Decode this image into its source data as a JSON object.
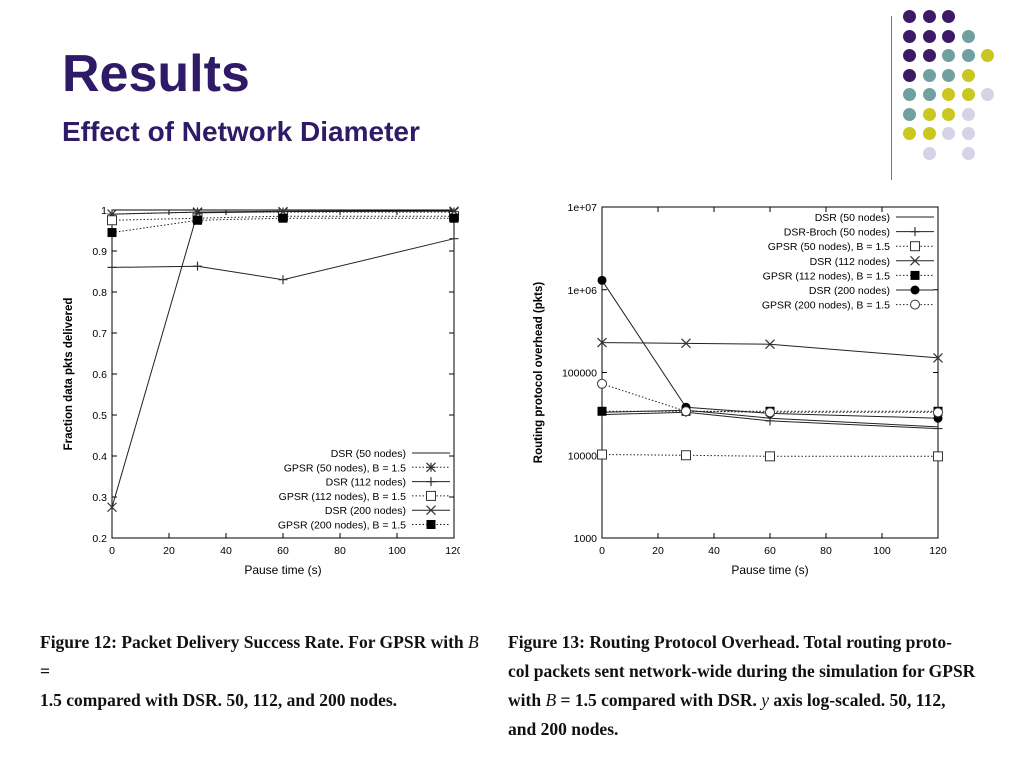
{
  "slide": {
    "title": "Results",
    "subtitle": "Effect of Network Diameter"
  },
  "decoration": {
    "colors": [
      "#3d1a66",
      "#70a0a0",
      "#c8c820",
      "#d4d4e6"
    ],
    "grid": [
      [
        0,
        0,
        0,
        -1,
        -1
      ],
      [
        0,
        0,
        0,
        1,
        -1
      ],
      [
        0,
        0,
        1,
        1,
        2
      ],
      [
        0,
        1,
        1,
        2,
        -1
      ],
      [
        1,
        1,
        2,
        2,
        3
      ],
      [
        1,
        2,
        2,
        3,
        -1
      ],
      [
        2,
        2,
        3,
        3,
        -1
      ],
      [
        -1,
        3,
        -1,
        3,
        -1
      ]
    ]
  },
  "chart_data": [
    {
      "type": "line",
      "xlabel": "Pause time (s)",
      "ylabel": "Fraction data pkts delivered",
      "xlim": [
        0,
        120
      ],
      "ylim": [
        0.2,
        1
      ],
      "xticks": [
        "0",
        "20",
        "40",
        "60",
        "80",
        "100",
        "120"
      ],
      "xtick_values": [
        0,
        20,
        40,
        60,
        80,
        100,
        120
      ],
      "yticks": [
        "0.2",
        "0.3",
        "0.4",
        "0.5",
        "0.6",
        "0.7",
        "0.8",
        "0.9",
        "1"
      ],
      "ytick_values": [
        0.2,
        0.3,
        0.4,
        0.5,
        0.6,
        0.7,
        0.8,
        0.9,
        1.0
      ],
      "grid": false,
      "legend_position": "bottom-right",
      "series": [
        {
          "name": "DSR (50 nodes)",
          "marker": "none",
          "dash": "solid",
          "x": [
            0,
            30,
            60,
            120
          ],
          "y": [
            0.99,
            0.995,
            0.997,
            0.998
          ]
        },
        {
          "name": "GPSR (50 nodes), B = 1.5",
          "marker": "asterisk",
          "dash": "dotted",
          "x": [
            0,
            30,
            60,
            120
          ],
          "y": [
            0.99,
            0.995,
            0.995,
            0.995
          ]
        },
        {
          "name": "DSR (112 nodes)",
          "marker": "plus",
          "dash": "solid",
          "x": [
            0,
            30,
            60,
            120
          ],
          "y": [
            0.86,
            0.863,
            0.83,
            0.93
          ]
        },
        {
          "name": "GPSR (112 nodes), B = 1.5",
          "marker": "square-open",
          "dash": "dotted",
          "x": [
            0,
            30,
            60,
            120
          ],
          "y": [
            0.975,
            0.98,
            0.985,
            0.985
          ]
        },
        {
          "name": "DSR (200 nodes)",
          "marker": "cross",
          "dash": "solid",
          "x": [
            0,
            30,
            60,
            120
          ],
          "y": [
            0.275,
            0.993,
            0.996,
            0.997
          ]
        },
        {
          "name": "GPSR (200 nodes), B = 1.5",
          "marker": "square-filled",
          "dash": "dotted",
          "x": [
            0,
            30,
            60,
            120
          ],
          "y": [
            0.945,
            0.975,
            0.98,
            0.98
          ]
        }
      ]
    },
    {
      "type": "line",
      "xlabel": "Pause time (s)",
      "ylabel": "Routing protocol overhead (pkts)",
      "xlim": [
        0,
        120
      ],
      "ylim": [
        1000,
        10000000
      ],
      "yscale": "log",
      "xticks": [
        "0",
        "20",
        "40",
        "60",
        "80",
        "100",
        "120"
      ],
      "xtick_values": [
        0,
        20,
        40,
        60,
        80,
        100,
        120
      ],
      "yticks": [
        "1000",
        "10000",
        "100000",
        "1e+06",
        "1e+07"
      ],
      "ytick_values": [
        1000,
        10000,
        100000,
        1000000,
        10000000
      ],
      "grid": false,
      "legend_position": "top-right",
      "series": [
        {
          "name": "DSR (50 nodes)",
          "marker": "none",
          "dash": "solid",
          "x": [
            0,
            30,
            60,
            120
          ],
          "y": [
            33000,
            35000,
            28000,
            22000
          ]
        },
        {
          "name": "DSR-Broch (50 nodes)",
          "marker": "plus",
          "dash": "solid",
          "x": [
            0,
            30,
            60,
            120
          ],
          "y": [
            31000,
            33000,
            26000,
            21000
          ]
        },
        {
          "name": "GPSR (50 nodes), B = 1.5",
          "marker": "square-open",
          "dash": "dotted",
          "x": [
            0,
            30,
            60,
            120
          ],
          "y": [
            10200,
            10000,
            9700,
            9700
          ]
        },
        {
          "name": "DSR (112 nodes)",
          "marker": "cross",
          "dash": "solid",
          "x": [
            0,
            30,
            60,
            120
          ],
          "y": [
            230000,
            225000,
            220000,
            150000
          ]
        },
        {
          "name": "GPSR (112 nodes), B = 1.5",
          "marker": "square-filled",
          "dash": "dotted",
          "x": [
            0,
            30,
            60,
            120
          ],
          "y": [
            34000,
            34000,
            34000,
            34000
          ]
        },
        {
          "name": "DSR (200 nodes)",
          "marker": "circle-filled",
          "dash": "solid",
          "x": [
            0,
            30,
            60,
            120
          ],
          "y": [
            1300000,
            38000,
            32000,
            28000
          ]
        },
        {
          "name": "GPSR (200 nodes), B = 1.5",
          "marker": "circle-open",
          "dash": "dotted",
          "x": [
            0,
            30,
            60,
            120
          ],
          "y": [
            73000,
            34000,
            33000,
            33000
          ]
        }
      ]
    }
  ],
  "captions": {
    "fig12": {
      "line1_a": "Figure 12:  Packet Delivery Success Rate.  For GPSR with ",
      "line1_var": "B",
      "line1_b": " =",
      "line2": "1.5 compared with DSR. 50, 112, and 200 nodes."
    },
    "fig13": {
      "line1": "Figure 13:  Routing Protocol Overhead.  Total routing proto-",
      "line2": "col packets sent network-wide during the simulation for GPSR",
      "line3_a": "with ",
      "line3_var": "B",
      "line3_b": " = 1.5 compared with DSR. ",
      "line3_var2": "y",
      "line3_c": " axis log-scaled.  50, 112,",
      "line4": "and 200 nodes."
    }
  }
}
